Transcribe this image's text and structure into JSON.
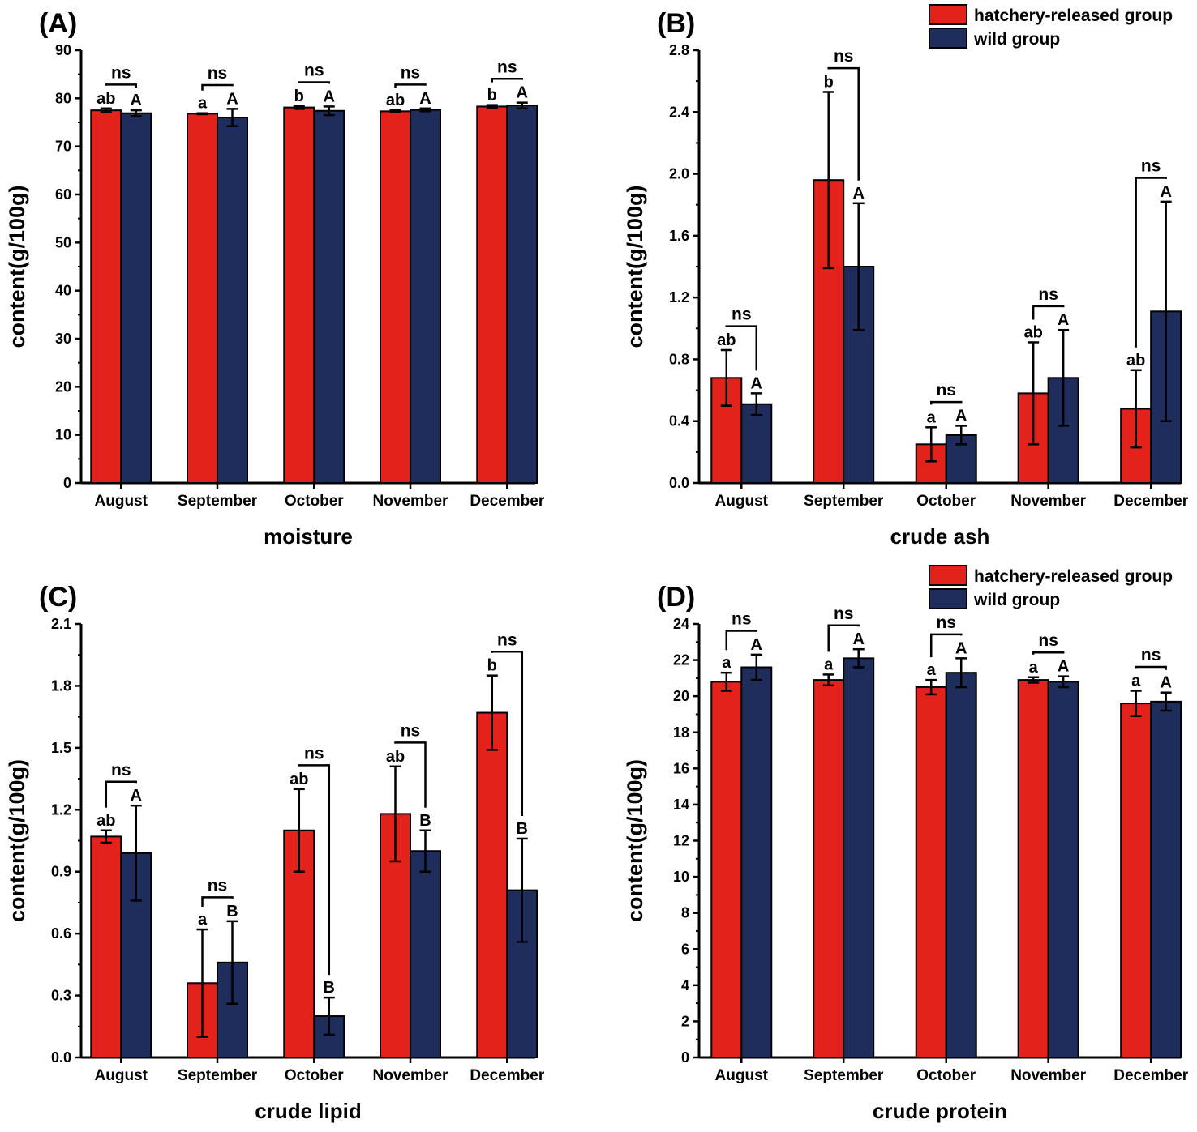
{
  "legend": {
    "hatchery_label": "hatchery-released group",
    "wild_label": "wild group"
  },
  "colors": {
    "hatchery": "#e3221c",
    "wild": "#1f2d5c",
    "axis": "#000000",
    "background": "#ffffff"
  },
  "chart_data": [
    {
      "type": "bar",
      "panel_label": "(A)",
      "title": "moisture",
      "ylabel": "content(g/100g)",
      "xlabel": "moisture",
      "categories": [
        "August",
        "September",
        "October",
        "November",
        "December"
      ],
      "ylim": [
        0,
        90
      ],
      "yticks": [
        0,
        10,
        20,
        30,
        40,
        50,
        60,
        70,
        80,
        90
      ],
      "tick_labels": [
        "0",
        "10",
        "20",
        "30",
        "40",
        "50",
        "60",
        "70",
        "80",
        "90"
      ],
      "legend_visible": false,
      "series": [
        {
          "name": "hatchery-released group",
          "values": [
            77.5,
            76.8,
            78.1,
            77.3,
            78.3
          ],
          "errors": [
            0.4,
            0.1,
            0.3,
            0.2,
            0.3
          ],
          "letters": [
            "ab",
            "a",
            "b",
            "ab",
            "b"
          ]
        },
        {
          "name": "wild group",
          "values": [
            76.9,
            76.0,
            77.4,
            77.6,
            78.5
          ],
          "errors": [
            0.6,
            1.8,
            0.9,
            0.3,
            0.6
          ],
          "letters": [
            "A",
            "A",
            "A",
            "A",
            "A"
          ]
        }
      ],
      "significance": [
        "ns",
        "ns",
        "ns",
        "ns",
        "ns"
      ]
    },
    {
      "type": "bar",
      "panel_label": "(B)",
      "title": "crude ash",
      "ylabel": "content(g/100g)",
      "xlabel": "crude ash",
      "categories": [
        "August",
        "September",
        "October",
        "November",
        "December"
      ],
      "ylim": [
        0,
        2.8
      ],
      "yticks": [
        0,
        0.4,
        0.8,
        1.2,
        1.6,
        2.0,
        2.4,
        2.8
      ],
      "tick_labels": [
        "0.0",
        "0.4",
        "0.8",
        "1.2",
        "1.6",
        "2.0",
        "2.4",
        "2.8"
      ],
      "legend_visible": true,
      "series": [
        {
          "name": "hatchery-released group",
          "values": [
            0.68,
            1.96,
            0.25,
            0.58,
            0.48
          ],
          "errors": [
            0.18,
            0.57,
            0.11,
            0.33,
            0.25
          ],
          "letters": [
            "ab",
            "b",
            "a",
            "ab",
            "ab"
          ]
        },
        {
          "name": "wild group",
          "values": [
            0.51,
            1.4,
            0.31,
            0.68,
            1.11
          ],
          "errors": [
            0.07,
            0.41,
            0.06,
            0.31,
            0.71
          ],
          "letters": [
            "A",
            "A",
            "A",
            "A",
            "A"
          ]
        }
      ],
      "significance": [
        "ns",
        "ns",
        "ns",
        "ns",
        "ns"
      ]
    },
    {
      "type": "bar",
      "panel_label": "(C)",
      "title": "crude lipid",
      "ylabel": "content(g/100g)",
      "xlabel": "crude lipid",
      "categories": [
        "August",
        "September",
        "October",
        "November",
        "December"
      ],
      "ylim": [
        0,
        2.1
      ],
      "yticks": [
        0,
        0.3,
        0.6,
        0.9,
        1.2,
        1.5,
        1.8,
        2.1
      ],
      "tick_labels": [
        "0.0",
        "0.3",
        "0.6",
        "0.9",
        "1.2",
        "1.5",
        "1.8",
        "2.1"
      ],
      "legend_visible": false,
      "series": [
        {
          "name": "hatchery-released group",
          "values": [
            1.07,
            0.36,
            1.1,
            1.18,
            1.67
          ],
          "errors": [
            0.03,
            0.26,
            0.2,
            0.23,
            0.18
          ],
          "letters": [
            "ab",
            "a",
            "ab",
            "ab",
            "b"
          ]
        },
        {
          "name": "wild group",
          "values": [
            0.99,
            0.46,
            0.2,
            1.0,
            0.81
          ],
          "errors": [
            0.23,
            0.2,
            0.09,
            0.1,
            0.25
          ],
          "letters": [
            "A",
            "B",
            "B",
            "B",
            "B"
          ]
        }
      ],
      "significance": [
        "ns",
        "ns",
        "ns",
        "ns",
        "ns"
      ]
    },
    {
      "type": "bar",
      "panel_label": "(D)",
      "title": "crude protein",
      "ylabel": "content(g/100g)",
      "xlabel": "crude protein",
      "categories": [
        "August",
        "September",
        "October",
        "November",
        "December"
      ],
      "ylim": [
        0,
        24
      ],
      "yticks": [
        0,
        2,
        4,
        6,
        8,
        10,
        12,
        14,
        16,
        18,
        20,
        22,
        24
      ],
      "tick_labels": [
        "0",
        "2",
        "4",
        "6",
        "8",
        "10",
        "12",
        "14",
        "16",
        "18",
        "20",
        "22",
        "24"
      ],
      "legend_visible": true,
      "series": [
        {
          "name": "hatchery-released group",
          "values": [
            20.8,
            20.9,
            20.5,
            20.9,
            19.6
          ],
          "errors": [
            0.5,
            0.3,
            0.4,
            0.15,
            0.7
          ],
          "letters": [
            "a",
            "a",
            "a",
            "a",
            "a"
          ]
        },
        {
          "name": "wild group",
          "values": [
            21.6,
            22.1,
            21.3,
            20.8,
            19.7
          ],
          "errors": [
            0.7,
            0.5,
            0.8,
            0.3,
            0.5
          ],
          "letters": [
            "A",
            "A",
            "A",
            "A",
            "A"
          ]
        }
      ],
      "significance": [
        "ns",
        "ns",
        "ns",
        "ns",
        "ns"
      ]
    }
  ]
}
